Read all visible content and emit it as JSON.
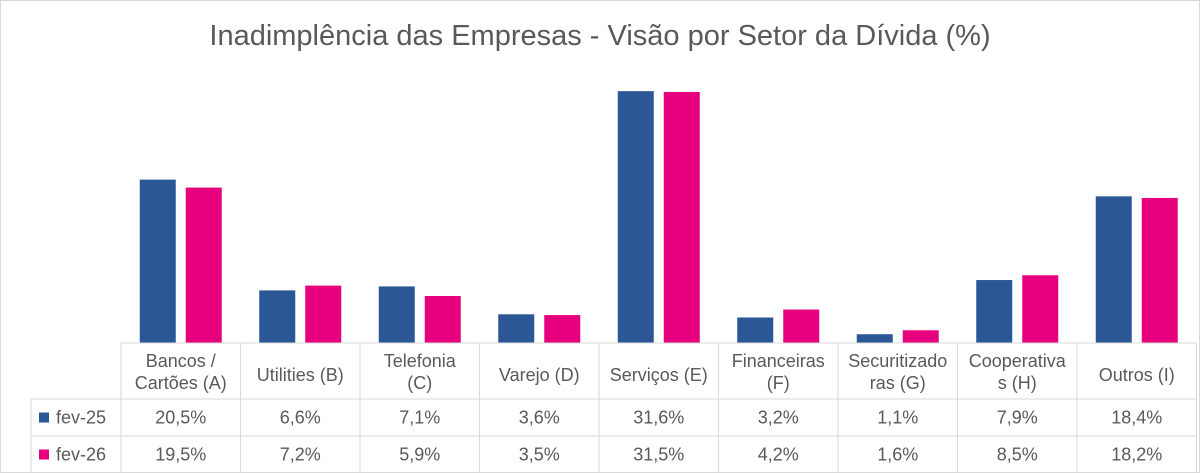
{
  "chart_data": {
    "type": "bar",
    "title": "Inadimplência das Empresas - Visão por Setor da Dívida (%)",
    "categories": [
      [
        "Bancos /",
        "Cartões (A)"
      ],
      [
        "Utilities (B)"
      ],
      [
        "Telefonia",
        "(C)"
      ],
      [
        "Varejo (D)"
      ],
      [
        "Serviços (E)"
      ],
      [
        "Financeiras",
        "(F)"
      ],
      [
        "Securitizado",
        "ras (G)"
      ],
      [
        "Cooperativa",
        "s (H)"
      ],
      [
        "Outros (I)"
      ]
    ],
    "series": [
      {
        "name": "fev-25",
        "color": "#2b5797",
        "values": [
          20.5,
          6.6,
          7.1,
          3.6,
          31.6,
          3.2,
          1.1,
          7.9,
          18.4
        ],
        "labels": [
          "20,5%",
          "6,6%",
          "7,1%",
          "3,6%",
          "31,6%",
          "3,2%",
          "1,1%",
          "7,9%",
          "18,4%"
        ]
      },
      {
        "name": "fev-26",
        "color": "#e6007e",
        "values": [
          19.5,
          7.2,
          5.9,
          3.5,
          31.5,
          4.2,
          1.6,
          8.5,
          18.2
        ],
        "labels": [
          "19,5%",
          "7,2%",
          "5,9%",
          "3,5%",
          "31,5%",
          "4,2%",
          "1,6%",
          "8,5%",
          "18,2%"
        ]
      }
    ],
    "ylim": [
      0,
      33
    ],
    "grid": false,
    "legend": "data-table"
  }
}
